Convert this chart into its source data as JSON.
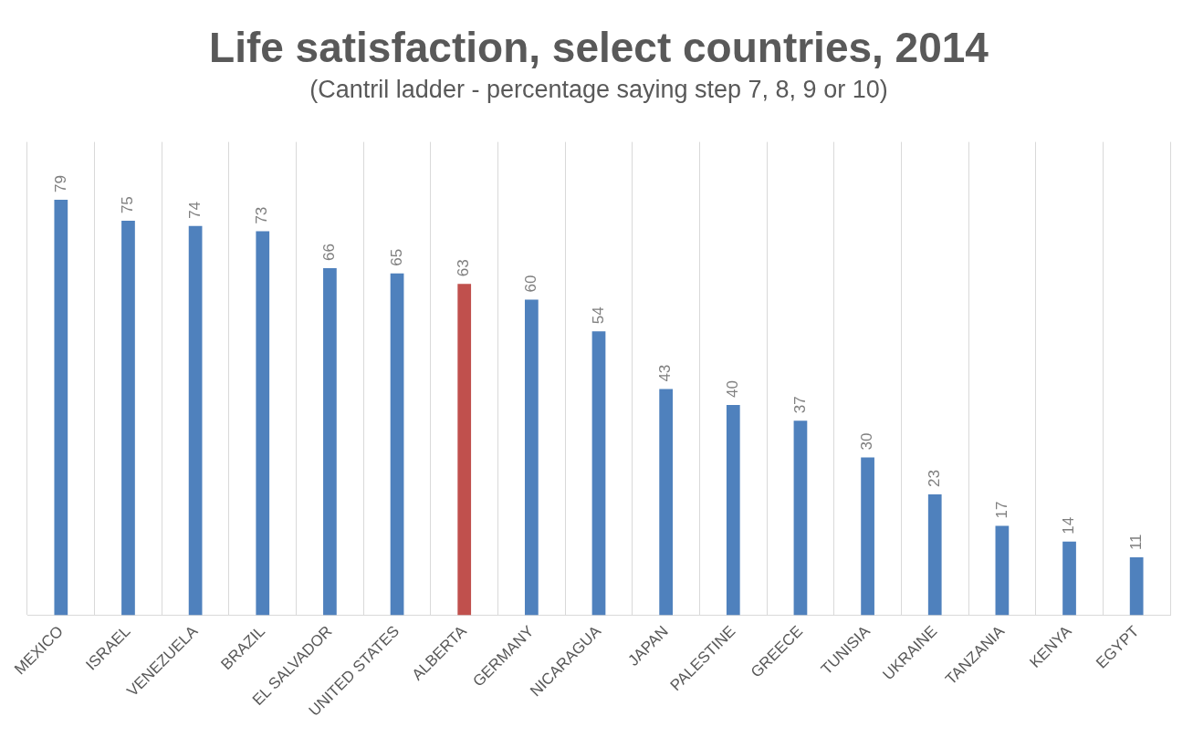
{
  "chart_data": {
    "type": "bar",
    "title": "Life satisfaction, select countries, 2014",
    "subtitle": "(Cantril ladder - percentage saying step 7, 8, 9 or 10)",
    "categories": [
      "MEXICO",
      "ISRAEL",
      "VENEZUELA",
      "BRAZIL",
      "EL SALVADOR",
      "UNITED STATES",
      "ALBERTA",
      "GERMANY",
      "NICARAGUA",
      "JAPAN",
      "PALESTINE",
      "GREECE",
      "TUNISIA",
      "UKRAINE",
      "TANZANIA",
      "KENYA",
      "EGYPT"
    ],
    "values": [
      79,
      75,
      74,
      73,
      66,
      65,
      63,
      60,
      54,
      43,
      40,
      37,
      30,
      23,
      17,
      14,
      11
    ],
    "colors": [
      "#4f81bd",
      "#4f81bd",
      "#4f81bd",
      "#4f81bd",
      "#4f81bd",
      "#4f81bd",
      "#c0504d",
      "#4f81bd",
      "#4f81bd",
      "#4f81bd",
      "#4f81bd",
      "#4f81bd",
      "#4f81bd",
      "#4f81bd",
      "#4f81bd",
      "#4f81bd",
      "#4f81bd"
    ],
    "ylim": [
      0,
      90
    ],
    "grid": "x",
    "data_labels": true,
    "tick_labels": "x",
    "legend": false
  }
}
